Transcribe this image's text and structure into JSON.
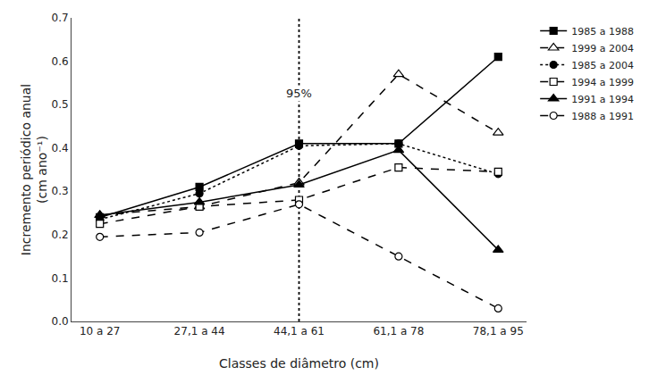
{
  "chart_data": {
    "type": "line",
    "categories": [
      "10 a 27",
      "27,1 a 44",
      "44,1 a 61",
      "61,1 a 78",
      "78,1 a 95"
    ],
    "series": [
      {
        "name": "1985 a 1988",
        "values": [
          0.24,
          0.31,
          0.41,
          0.41,
          0.61
        ],
        "line_style": "solid",
        "marker": "square",
        "color": "black"
      },
      {
        "name": "1999 a 2004",
        "values": [
          0.245,
          0.265,
          0.32,
          0.57,
          0.435
        ],
        "line_style": "dashed",
        "marker": "triangle-up-open",
        "color": "black"
      },
      {
        "name": "1985 a 2004",
        "values": [
          0.235,
          0.295,
          0.405,
          0.41,
          0.34
        ],
        "line_style": "dotted",
        "marker": "circle",
        "color": "black"
      },
      {
        "name": "1994 a 1999",
        "values": [
          0.225,
          0.265,
          0.28,
          0.355,
          0.345
        ],
        "line_style": "dashed",
        "marker": "square-open",
        "color": "black"
      },
      {
        "name": "1991 a 1994",
        "values": [
          0.245,
          0.275,
          0.315,
          0.395,
          0.165
        ],
        "line_style": "solid",
        "marker": "triangle-up",
        "color": "black"
      },
      {
        "name": "1988 a 1991",
        "values": [
          0.195,
          0.205,
          0.27,
          0.15,
          0.03
        ],
        "line_style": "dashed",
        "marker": "circle-open",
        "color": "black"
      }
    ],
    "xlabel": "Classes de diâmetro (cm)",
    "ylabel": "Incremento periódico anual\n(cm ano⁻¹)",
    "ylim": [
      0.0,
      0.7
    ],
    "yticks": [
      {
        "value": 0.0,
        "label": "0.0"
      },
      0.1,
      0.2,
      0.3,
      0.4,
      0.5,
      0.6,
      0.7
    ],
    "annotations": [
      {
        "x": "44,1 a 61",
        "text": "95%"
      }
    ],
    "grid": false,
    "legend": "upper right"
  }
}
